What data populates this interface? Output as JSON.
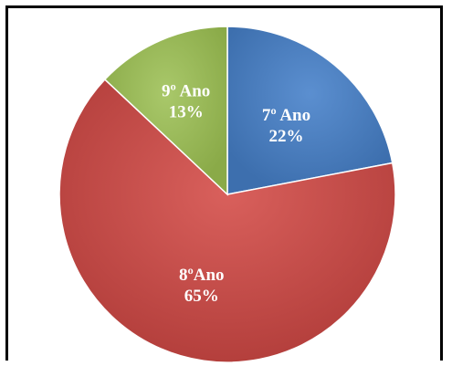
{
  "chart_data": {
    "type": "pie",
    "title": "",
    "slices": [
      {
        "label": "7º Ano",
        "value": 22,
        "value_label": "22%",
        "color": "#4a7ebb"
      },
      {
        "label": "8ºAno",
        "value": 65,
        "value_label": "65%",
        "color": "#c0504d"
      },
      {
        "label": "9º Ano",
        "value": 13,
        "value_label": "13%",
        "color": "#9bbb59"
      }
    ],
    "start_angle_deg": 0,
    "direction": "clockwise",
    "legend": "none"
  }
}
